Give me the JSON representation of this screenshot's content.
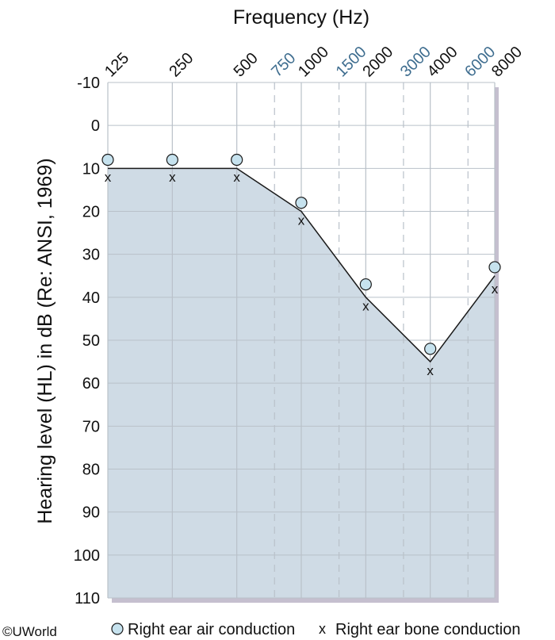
{
  "chart_data": {
    "type": "line",
    "title": "Frequency (Hz)",
    "ylabel": "Hearing level (HL) in dB (Re: ANSI, 1969)",
    "x_major": [
      "125",
      "250",
      "500",
      "1000",
      "2000",
      "4000",
      "8000"
    ],
    "x_minor": [
      "750",
      "1500",
      "3000",
      "6000"
    ],
    "y_ticks": [
      "-10",
      "0",
      "10",
      "20",
      "30",
      "40",
      "50",
      "60",
      "70",
      "80",
      "90",
      "100",
      "110"
    ],
    "ylim": [
      -10,
      110
    ],
    "y_inverted": true,
    "grid": true,
    "legend_position": "bottom",
    "hearing_line": {
      "x": [
        "125",
        "250",
        "500",
        "1000",
        "2000",
        "4000",
        "8000"
      ],
      "values": [
        10,
        10,
        10,
        20,
        40,
        55,
        35
      ]
    },
    "series": [
      {
        "name": "Right ear air conduction",
        "marker": "circle",
        "x": [
          "125",
          "250",
          "500",
          "1000",
          "2000",
          "4000",
          "8000"
        ],
        "values": [
          8,
          8,
          8,
          18,
          37,
          52,
          33
        ]
      },
      {
        "name": "Right ear bone conduction",
        "marker": "x",
        "x": [
          "125",
          "250",
          "500",
          "1000",
          "2000",
          "4000",
          "8000"
        ],
        "values": [
          12,
          12,
          12,
          22,
          42,
          57,
          38
        ]
      }
    ],
    "colors": {
      "fill": "#cfdbe5",
      "grid": "#b9c1c9",
      "line": "#1a1a1a",
      "marker_fill": "#c6e2ee",
      "minor_label": "#3e6d8f",
      "shadow": "#c5bfcf"
    }
  },
  "legend": {
    "air_symbol": "○",
    "air_label": "Right ear air conduction",
    "bone_symbol": "x",
    "bone_label": "Right ear bone conduction"
  },
  "copyright": "©UWorld"
}
